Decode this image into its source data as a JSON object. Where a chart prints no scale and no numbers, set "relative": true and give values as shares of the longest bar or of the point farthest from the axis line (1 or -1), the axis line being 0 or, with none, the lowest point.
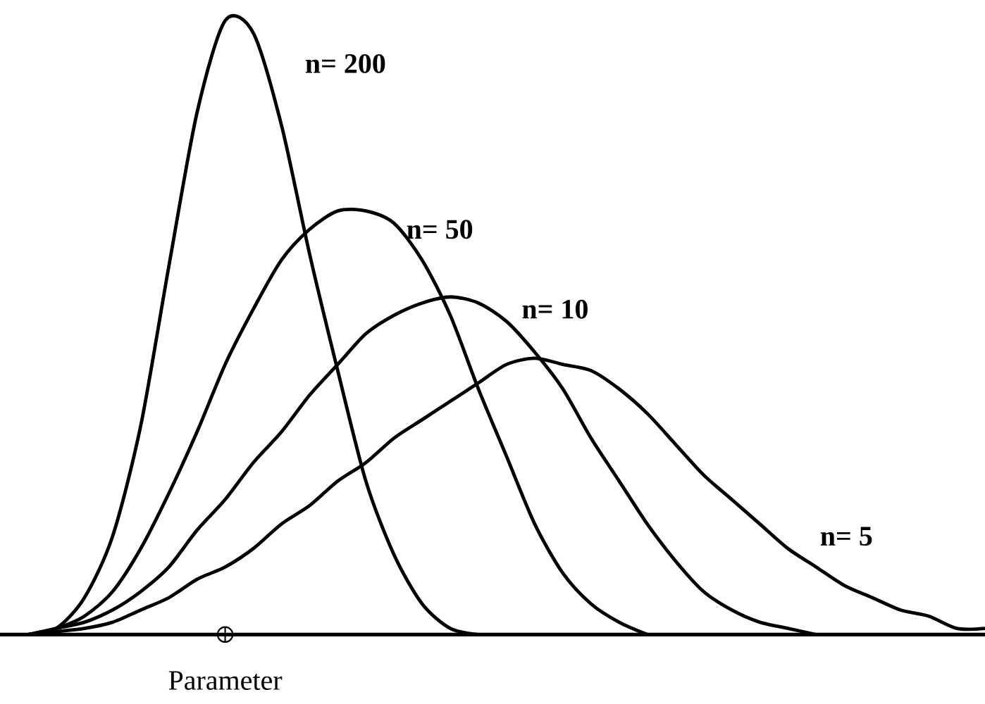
{
  "chart_data": {
    "type": "line",
    "relative": true,
    "marker": "none",
    "categories": [
      null,
      null,
      null,
      null,
      null,
      null,
      null,
      null,
      null,
      null,
      null,
      null,
      null,
      null,
      null,
      null,
      null,
      null,
      null,
      null,
      null,
      null,
      null,
      null,
      null,
      null,
      null,
      null,
      null,
      null,
      null,
      null,
      null,
      null,
      null,
      null
    ],
    "series": [
      {
        "name": "n= 200",
        "color": "#000000",
        "values": [
          null,
          0,
          0.01,
          0.06,
          0.16,
          0.34,
          0.6,
          0.85,
          1,
          0.98,
          0.83,
          0.62,
          0.43,
          0.25,
          0.13,
          0.05,
          0.01,
          0,
          null,
          null,
          null,
          null,
          null,
          null,
          null,
          null,
          null,
          null,
          null,
          null,
          null,
          null,
          null,
          null,
          null,
          null
        ]
      },
      {
        "name": "n= 50",
        "color": "#000000",
        "values": [
          null,
          0,
          0.01,
          0.03,
          0.07,
          0.14,
          0.23,
          0.33,
          0.44,
          0.53,
          0.61,
          0.66,
          0.69,
          0.69,
          0.67,
          0.61,
          0.52,
          0.4,
          0.29,
          0.18,
          0.1,
          0.05,
          0.02,
          0,
          null,
          null,
          null,
          null,
          null,
          null,
          null,
          null,
          null,
          null,
          null,
          null
        ]
      },
      {
        "name": "n= 10",
        "color": "#000000",
        "values": [
          null,
          0,
          0.01,
          0.02,
          0.04,
          0.07,
          0.11,
          0.17,
          0.22,
          0.28,
          0.33,
          0.39,
          0.44,
          0.49,
          0.52,
          0.54,
          0.55,
          0.54,
          0.51,
          0.46,
          0.4,
          0.32,
          0.25,
          0.18,
          0.12,
          0.07,
          0.04,
          0.02,
          0.01,
          0,
          null,
          null,
          null,
          null,
          null,
          null
        ]
      },
      {
        "name": "n= 5",
        "color": "#000000",
        "values": [
          null,
          0,
          0.005,
          0.01,
          0.02,
          0.04,
          0.06,
          0.09,
          0.11,
          0.14,
          0.18,
          0.21,
          0.25,
          0.28,
          0.32,
          0.35,
          0.38,
          0.41,
          0.44,
          0.45,
          0.44,
          0.43,
          0.4,
          0.36,
          0.31,
          0.26,
          0.22,
          0.18,
          0.14,
          0.11,
          0.08,
          0.06,
          0.04,
          0.03,
          0.01,
          0.01
        ]
      }
    ],
    "annotations": [
      "Parameter"
    ]
  }
}
